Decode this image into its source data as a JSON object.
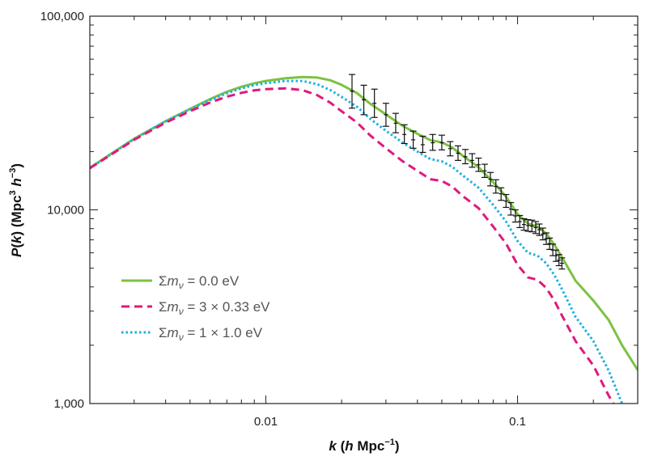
{
  "chart_data": {
    "type": "line",
    "xscale": "log",
    "yscale": "log",
    "xlim": [
      0.002,
      0.3
    ],
    "ylim": [
      1000,
      100000
    ],
    "x_ticks": [
      {
        "value": 0.01,
        "label": "0.01"
      },
      {
        "value": 0.1,
        "label": "0.1"
      }
    ],
    "y_ticks": [
      {
        "value": 1000,
        "label": "1,000"
      },
      {
        "value": 10000,
        "label": "10,000"
      },
      {
        "value": 100000,
        "label": "100,000"
      }
    ],
    "xlabel": {
      "k": "k",
      "open": " (",
      "h": "h",
      "unit": " Mpc",
      "sup": "−1",
      "close": ")"
    },
    "ylabel": {
      "p": "P",
      "open": "(",
      "k": "k",
      "mid": ") (Mpc",
      "sup3": "3",
      "space": " ",
      "h": "h",
      "supm3": "−3",
      "close": ")"
    },
    "legend": {
      "position": "lower-left",
      "entries": [
        {
          "sigma": "Σ",
          "m": "m",
          "sub": "ν",
          "eq": " = 0.0 eV"
        },
        {
          "sigma": "Σ",
          "m": "m",
          "sub": "ν",
          "eq": " = 3 × 0.33 eV"
        },
        {
          "sigma": "Σ",
          "m": "m",
          "sub": "ν",
          "eq": " = 1 × 1.0 eV"
        }
      ]
    },
    "series": [
      {
        "name": "Σmν = 0.0 eV",
        "color": "#7cc242",
        "dash": "solid",
        "points": [
          [
            0.002,
            16500
          ],
          [
            0.003,
            23300
          ],
          [
            0.004,
            28700
          ],
          [
            0.005,
            33200
          ],
          [
            0.006,
            37300
          ],
          [
            0.007,
            40700
          ],
          [
            0.008,
            43200
          ],
          [
            0.009,
            45000
          ],
          [
            0.01,
            46300
          ],
          [
            0.012,
            47800
          ],
          [
            0.014,
            48500
          ],
          [
            0.016,
            48200
          ],
          [
            0.018,
            46700
          ],
          [
            0.02,
            44200
          ],
          [
            0.023,
            40100
          ],
          [
            0.026,
            35300
          ],
          [
            0.03,
            31100
          ],
          [
            0.035,
            27100
          ],
          [
            0.04,
            24700
          ],
          [
            0.045,
            22900
          ],
          [
            0.05,
            22300
          ],
          [
            0.055,
            21000
          ],
          [
            0.06,
            19200
          ],
          [
            0.07,
            16600
          ],
          [
            0.08,
            13900
          ],
          [
            0.09,
            11700
          ],
          [
            0.1,
            9500
          ],
          [
            0.11,
            8500
          ],
          [
            0.12,
            8200
          ],
          [
            0.13,
            7550
          ],
          [
            0.14,
            6600
          ],
          [
            0.15,
            5700
          ],
          [
            0.17,
            4300
          ],
          [
            0.2,
            3400
          ],
          [
            0.23,
            2700
          ],
          [
            0.26,
            2000
          ],
          [
            0.3,
            1490
          ]
        ]
      },
      {
        "name": "Σmν = 3 × 0.33 eV",
        "color": "#e0197c",
        "dash": "dashed",
        "points": [
          [
            0.002,
            16400
          ],
          [
            0.003,
            23000
          ],
          [
            0.004,
            28200
          ],
          [
            0.005,
            32300
          ],
          [
            0.006,
            35800
          ],
          [
            0.007,
            38400
          ],
          [
            0.008,
            40200
          ],
          [
            0.009,
            41400
          ],
          [
            0.01,
            42000
          ],
          [
            0.012,
            42400
          ],
          [
            0.014,
            41500
          ],
          [
            0.016,
            39100
          ],
          [
            0.018,
            35800
          ],
          [
            0.02,
            32300
          ],
          [
            0.023,
            28300
          ],
          [
            0.026,
            24200
          ],
          [
            0.03,
            20800
          ],
          [
            0.035,
            17800
          ],
          [
            0.04,
            15900
          ],
          [
            0.045,
            14400
          ],
          [
            0.05,
            14100
          ],
          [
            0.055,
            13200
          ],
          [
            0.06,
            11900
          ],
          [
            0.07,
            10200
          ],
          [
            0.08,
            8200
          ],
          [
            0.09,
            6700
          ],
          [
            0.1,
            5200
          ],
          [
            0.11,
            4480
          ],
          [
            0.12,
            4350
          ],
          [
            0.13,
            3950
          ],
          [
            0.14,
            3400
          ],
          [
            0.15,
            2850
          ],
          [
            0.17,
            2100
          ],
          [
            0.2,
            1570
          ],
          [
            0.23,
            1100
          ],
          [
            0.24,
            1000
          ]
        ]
      },
      {
        "name": "Σmν = 1 × 1.0 eV",
        "color": "#1ab0e0",
        "dash": "dotted",
        "points": [
          [
            0.002,
            16400
          ],
          [
            0.003,
            23200
          ],
          [
            0.004,
            28600
          ],
          [
            0.005,
            33000
          ],
          [
            0.006,
            36900
          ],
          [
            0.007,
            40000
          ],
          [
            0.008,
            42400
          ],
          [
            0.009,
            44100
          ],
          [
            0.01,
            45100
          ],
          [
            0.012,
            46300
          ],
          [
            0.014,
            46300
          ],
          [
            0.016,
            44500
          ],
          [
            0.018,
            41600
          ],
          [
            0.02,
            38300
          ],
          [
            0.023,
            34100
          ],
          [
            0.026,
            29500
          ],
          [
            0.03,
            25600
          ],
          [
            0.035,
            22200
          ],
          [
            0.04,
            20000
          ],
          [
            0.045,
            18300
          ],
          [
            0.05,
            17800
          ],
          [
            0.055,
            16700
          ],
          [
            0.06,
            15200
          ],
          [
            0.07,
            13000
          ],
          [
            0.08,
            10600
          ],
          [
            0.09,
            8700
          ],
          [
            0.1,
            6900
          ],
          [
            0.11,
            6000
          ],
          [
            0.12,
            5800
          ],
          [
            0.13,
            5300
          ],
          [
            0.14,
            4600
          ],
          [
            0.15,
            3900
          ],
          [
            0.17,
            2800
          ],
          [
            0.2,
            2100
          ],
          [
            0.23,
            1480
          ],
          [
            0.26,
            1000
          ]
        ]
      },
      {
        "name": "data",
        "type": "errorbar",
        "color": "#111111",
        "points": [
          {
            "x": 0.022,
            "y": 41000,
            "lo": 33500,
            "hi": 50000
          },
          {
            "x": 0.0245,
            "y": 37000,
            "lo": 31000,
            "hi": 44000
          },
          {
            "x": 0.027,
            "y": 35500,
            "lo": 30000,
            "hi": 42000
          },
          {
            "x": 0.03,
            "y": 31000,
            "lo": 27000,
            "hi": 35500
          },
          {
            "x": 0.0328,
            "y": 28000,
            "lo": 25000,
            "hi": 31500
          },
          {
            "x": 0.0355,
            "y": 24500,
            "lo": 22000,
            "hi": 27500
          },
          {
            "x": 0.0385,
            "y": 23000,
            "lo": 20800,
            "hi": 25500
          },
          {
            "x": 0.042,
            "y": 21700,
            "lo": 19800,
            "hi": 24000
          },
          {
            "x": 0.046,
            "y": 22200,
            "lo": 20300,
            "hi": 24500
          },
          {
            "x": 0.05,
            "y": 22200,
            "lo": 20400,
            "hi": 24300
          },
          {
            "x": 0.054,
            "y": 20700,
            "lo": 19000,
            "hi": 22500
          },
          {
            "x": 0.058,
            "y": 19600,
            "lo": 18000,
            "hi": 21400
          },
          {
            "x": 0.062,
            "y": 18800,
            "lo": 17300,
            "hi": 20500
          },
          {
            "x": 0.066,
            "y": 18000,
            "lo": 16600,
            "hi": 19500
          },
          {
            "x": 0.07,
            "y": 17100,
            "lo": 15800,
            "hi": 18500
          },
          {
            "x": 0.074,
            "y": 15900,
            "lo": 14700,
            "hi": 17200
          },
          {
            "x": 0.078,
            "y": 14400,
            "lo": 13300,
            "hi": 15600
          },
          {
            "x": 0.082,
            "y": 13200,
            "lo": 12200,
            "hi": 14300
          },
          {
            "x": 0.086,
            "y": 12100,
            "lo": 11200,
            "hi": 13000
          },
          {
            "x": 0.09,
            "y": 11100,
            "lo": 10300,
            "hi": 12000
          },
          {
            "x": 0.094,
            "y": 10100,
            "lo": 9400,
            "hi": 10900
          },
          {
            "x": 0.098,
            "y": 9300,
            "lo": 8650,
            "hi": 10000
          },
          {
            "x": 0.102,
            "y": 8700,
            "lo": 8100,
            "hi": 9350
          },
          {
            "x": 0.106,
            "y": 8400,
            "lo": 7850,
            "hi": 9000
          },
          {
            "x": 0.11,
            "y": 8300,
            "lo": 7750,
            "hi": 8900
          },
          {
            "x": 0.114,
            "y": 8250,
            "lo": 7700,
            "hi": 8850
          },
          {
            "x": 0.118,
            "y": 8100,
            "lo": 7550,
            "hi": 8700
          },
          {
            "x": 0.122,
            "y": 7900,
            "lo": 7380,
            "hi": 8450
          },
          {
            "x": 0.126,
            "y": 7500,
            "lo": 7000,
            "hi": 8050
          },
          {
            "x": 0.13,
            "y": 7100,
            "lo": 6630,
            "hi": 7600
          },
          {
            "x": 0.134,
            "y": 6700,
            "lo": 6250,
            "hi": 7150
          },
          {
            "x": 0.138,
            "y": 6200,
            "lo": 5800,
            "hi": 6650
          },
          {
            "x": 0.142,
            "y": 5800,
            "lo": 5420,
            "hi": 6200
          },
          {
            "x": 0.146,
            "y": 5500,
            "lo": 5150,
            "hi": 5880
          },
          {
            "x": 0.15,
            "y": 5300,
            "lo": 4950,
            "hi": 5650
          }
        ]
      }
    ]
  }
}
